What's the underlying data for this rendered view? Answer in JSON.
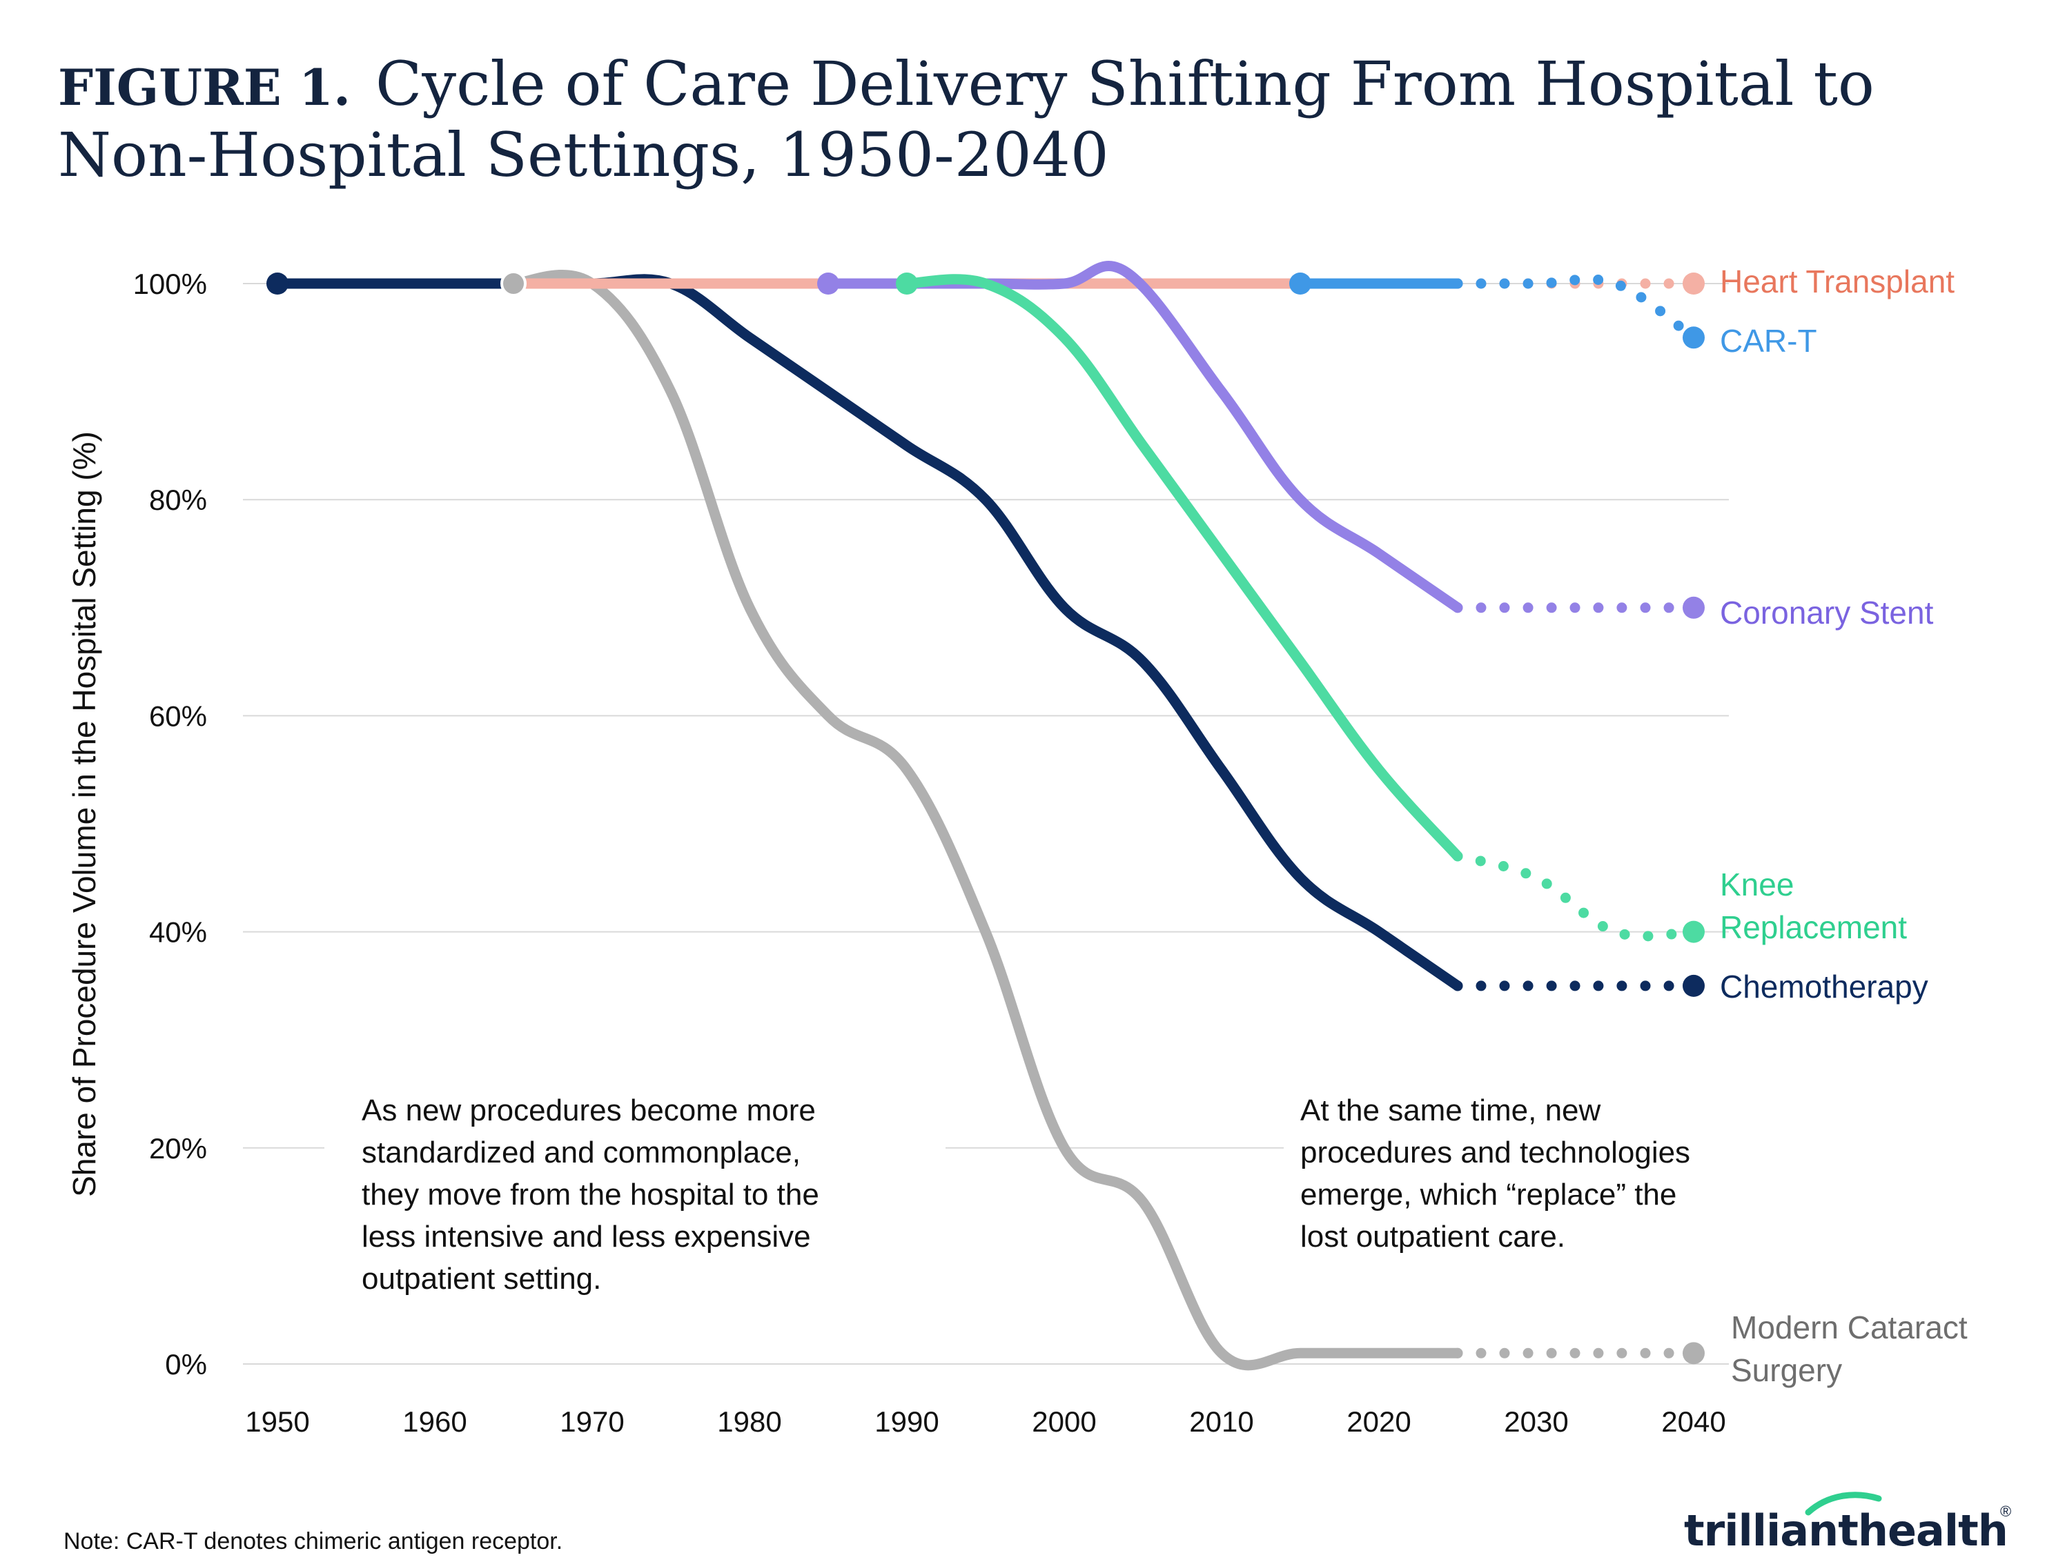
{
  "title": {
    "lead": "FIGURE 1.",
    "line1": "Cycle of Care Delivery Shifting From Hospital to",
    "line2": "Non-Hospital Settings, 1950-2040"
  },
  "chart_data": {
    "type": "line",
    "title": "Cycle of Care Delivery Shifting From Hospital to Non-Hospital Settings, 1950-2040",
    "xlabel": "",
    "ylabel": "Share of Procedure Volume in the Hospital Setting (%)",
    "xlim": [
      1950,
      2040
    ],
    "ylim": [
      0,
      100
    ],
    "x_ticks": [
      1950,
      1960,
      1970,
      1980,
      1990,
      2000,
      2010,
      2020,
      2030,
      2040
    ],
    "x_tick_labels": [
      "1950",
      "1960",
      "1970",
      "1980",
      "1990",
      "2000",
      "2010",
      "2020",
      "2030",
      "2040"
    ],
    "y_ticks": [
      0,
      20,
      40,
      60,
      80,
      100
    ],
    "y_tick_labels": [
      "0%",
      "20%",
      "40%",
      "60%",
      "80%",
      "100%"
    ],
    "grid": true,
    "legend": "direct labels at right end of each series",
    "series": [
      {
        "name": "Chemotherapy",
        "label_lines": [
          "Chemotherapy"
        ],
        "color": "#0d2b5e",
        "solid": [
          [
            1950,
            100
          ],
          [
            1955,
            100
          ],
          [
            1960,
            100
          ],
          [
            1965,
            100
          ],
          [
            1970,
            100
          ],
          [
            1975,
            100
          ],
          [
            1980,
            95
          ],
          [
            1985,
            90
          ],
          [
            1990,
            85
          ],
          [
            1995,
            80
          ],
          [
            2000,
            70
          ],
          [
            2005,
            65
          ],
          [
            2010,
            55
          ],
          [
            2015,
            45
          ],
          [
            2020,
            40
          ],
          [
            2025,
            35
          ]
        ],
        "projected": [
          [
            2025,
            35
          ],
          [
            2030,
            35
          ],
          [
            2035,
            35
          ],
          [
            2040,
            35
          ]
        ]
      },
      {
        "name": "Modern Cataract Surgery",
        "label_lines": [
          "Modern Cataract",
          "Surgery"
        ],
        "color": "#b0b0b0",
        "solid": [
          [
            1965,
            100
          ],
          [
            1970,
            100
          ],
          [
            1975,
            90
          ],
          [
            1980,
            70
          ],
          [
            1985,
            60
          ],
          [
            1990,
            55
          ],
          [
            1995,
            40
          ],
          [
            2000,
            20
          ],
          [
            2005,
            15
          ],
          [
            2010,
            1
          ],
          [
            2015,
            1
          ],
          [
            2020,
            1
          ],
          [
            2025,
            1
          ]
        ],
        "projected": [
          [
            2025,
            1
          ],
          [
            2030,
            1
          ],
          [
            2035,
            1
          ],
          [
            2040,
            1
          ]
        ]
      },
      {
        "name": "Heart Transplant",
        "label_lines": [
          "Heart Transplant"
        ],
        "color": "#f4b0a4",
        "label_color": "#e8775d",
        "solid": [
          [
            1965,
            100
          ],
          [
            1975,
            100
          ],
          [
            1985,
            100
          ],
          [
            1995,
            100
          ],
          [
            2005,
            100
          ],
          [
            2015,
            100
          ]
        ],
        "projected": [
          [
            2025,
            100
          ],
          [
            2030,
            100
          ],
          [
            2035,
            100
          ],
          [
            2040,
            100
          ]
        ]
      },
      {
        "name": "Coronary Stent",
        "label_lines": [
          "Coronary Stent"
        ],
        "color": "#9381e6",
        "label_color": "#7a63e0",
        "solid": [
          [
            1985,
            100
          ],
          [
            1990,
            100
          ],
          [
            1995,
            100
          ],
          [
            2000,
            100
          ],
          [
            2004,
            101
          ],
          [
            2010,
            90
          ],
          [
            2015,
            80
          ],
          [
            2020,
            75
          ],
          [
            2025,
            70
          ]
        ],
        "projected": [
          [
            2025,
            70
          ],
          [
            2030,
            70
          ],
          [
            2035,
            70
          ],
          [
            2040,
            70
          ]
        ]
      },
      {
        "name": "Knee Replacement",
        "label_lines": [
          "Knee",
          "Replacement"
        ],
        "color": "#4ddba2",
        "label_color": "#2fcf8f",
        "solid": [
          [
            1990,
            100
          ],
          [
            1995,
            100
          ],
          [
            2000,
            95
          ],
          [
            2005,
            85
          ],
          [
            2010,
            75
          ],
          [
            2015,
            65
          ],
          [
            2020,
            55
          ],
          [
            2025,
            47
          ]
        ],
        "projected": [
          [
            2025,
            47
          ],
          [
            2030,
            45
          ],
          [
            2035,
            40
          ],
          [
            2040,
            40
          ]
        ]
      },
      {
        "name": "CAR-T",
        "label_lines": [
          "CAR-T"
        ],
        "color": "#3f98e6",
        "solid": [
          [
            2015,
            100
          ],
          [
            2020,
            100
          ],
          [
            2025,
            100
          ]
        ],
        "projected": [
          [
            2025,
            100
          ],
          [
            2030,
            100
          ],
          [
            2035,
            100
          ],
          [
            2040,
            95
          ]
        ]
      }
    ],
    "annotations": [
      [
        "As new procedures become more",
        "standardized and commonplace,",
        "they move from the hospital to the",
        "less intensive and less expensive",
        "outpatient setting."
      ],
      [
        "At the same time, new",
        "procedures and technologies",
        "emerge, which “replace” the",
        "lost outpatient care."
      ]
    ]
  },
  "note": "Note: CAR-T denotes chimeric antigen receptor.",
  "logo": {
    "part1": "trilliant",
    "part2": "health",
    "mark": "®",
    "accent_color": "#2fcf8f"
  }
}
